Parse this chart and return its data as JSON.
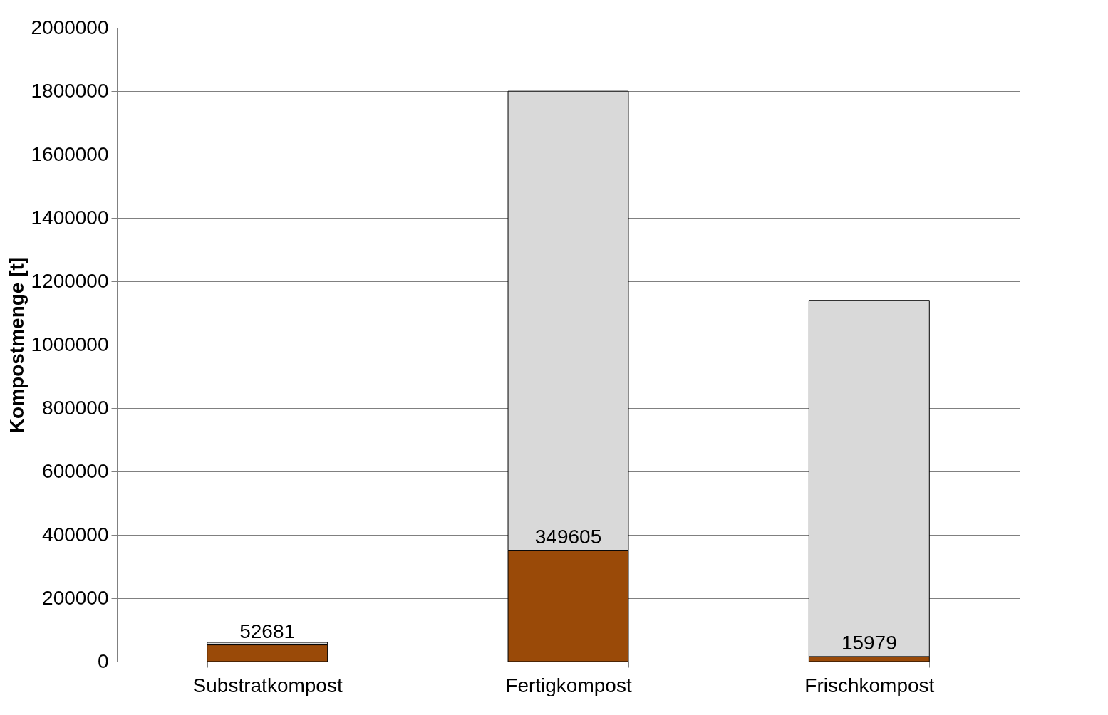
{
  "chart_data": {
    "type": "bar",
    "ylabel": "Kompostmenge [t]",
    "categories": [
      "Substratkompost",
      "Fertigkompost",
      "Frischkompost"
    ],
    "stacked": true,
    "series": [
      {
        "color": "#9a4a08",
        "values": [
          52681,
          349605,
          15979
        ],
        "value_labels": [
          "52681",
          "349605",
          "15979"
        ]
      },
      {
        "color": "#d9d9d9",
        "values": [
          8000,
          1450000,
          1124000
        ]
      }
    ],
    "ylim": [
      0,
      2000000
    ],
    "yticks": [
      0,
      200000,
      400000,
      600000,
      800000,
      1000000,
      1200000,
      1400000,
      1600000,
      1800000,
      2000000
    ],
    "grid": "y",
    "legend": false
  }
}
